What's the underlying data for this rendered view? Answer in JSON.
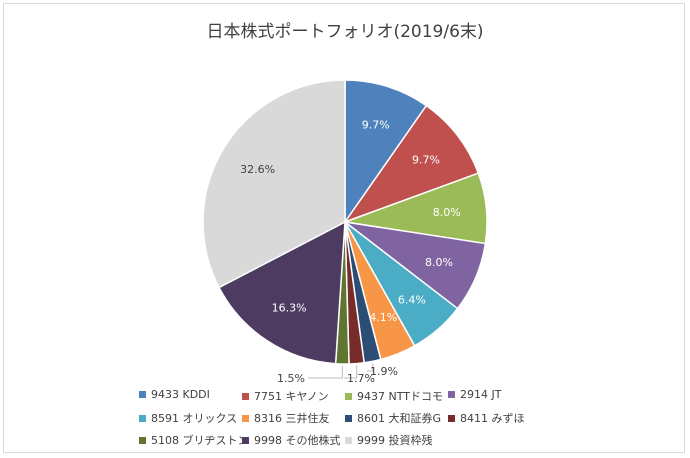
{
  "chart_data": {
    "type": "pie",
    "title": "日本株式ポートフォリオ(2019/6末)",
    "start_angle_deg": 0,
    "direction": "clockwise",
    "slices": [
      {
        "label": "9433 KDDI",
        "value": 9.7,
        "display": "9.7%",
        "color": "#4f81bd"
      },
      {
        "label": "7751 キヤノン",
        "value": 9.7,
        "display": "9.7%",
        "color": "#c0504d"
      },
      {
        "label": "9437 NTTドコモ",
        "value": 8.0,
        "display": "8.0%",
        "color": "#9bbb59"
      },
      {
        "label": "2914 JT",
        "value": 8.0,
        "display": "8.0%",
        "color": "#8064a2"
      },
      {
        "label": "8591 オリックス",
        "value": 6.4,
        "display": "6.4%",
        "color": "#4bacc6"
      },
      {
        "label": "8316 三井住友",
        "value": 4.1,
        "display": "4.1%",
        "color": "#f79646"
      },
      {
        "label": "8601 大和証券G",
        "value": 1.9,
        "display": "1.9%",
        "color": "#2c4d75"
      },
      {
        "label": "8411 みずほ",
        "value": 1.7,
        "display": "1.7%",
        "color": "#772c2a"
      },
      {
        "label": "5108 ブリヂストン",
        "value": 1.5,
        "display": "1.5%",
        "color": "#5f7530"
      },
      {
        "label": "9998 その他株式",
        "value": 16.3,
        "display": "16.3%",
        "color": "#4d3b62"
      },
      {
        "label": "9999 投資枠残",
        "value": 32.6,
        "display": "32.6%",
        "color": "#d9d9d9"
      }
    ],
    "legend_position": "bottom"
  }
}
